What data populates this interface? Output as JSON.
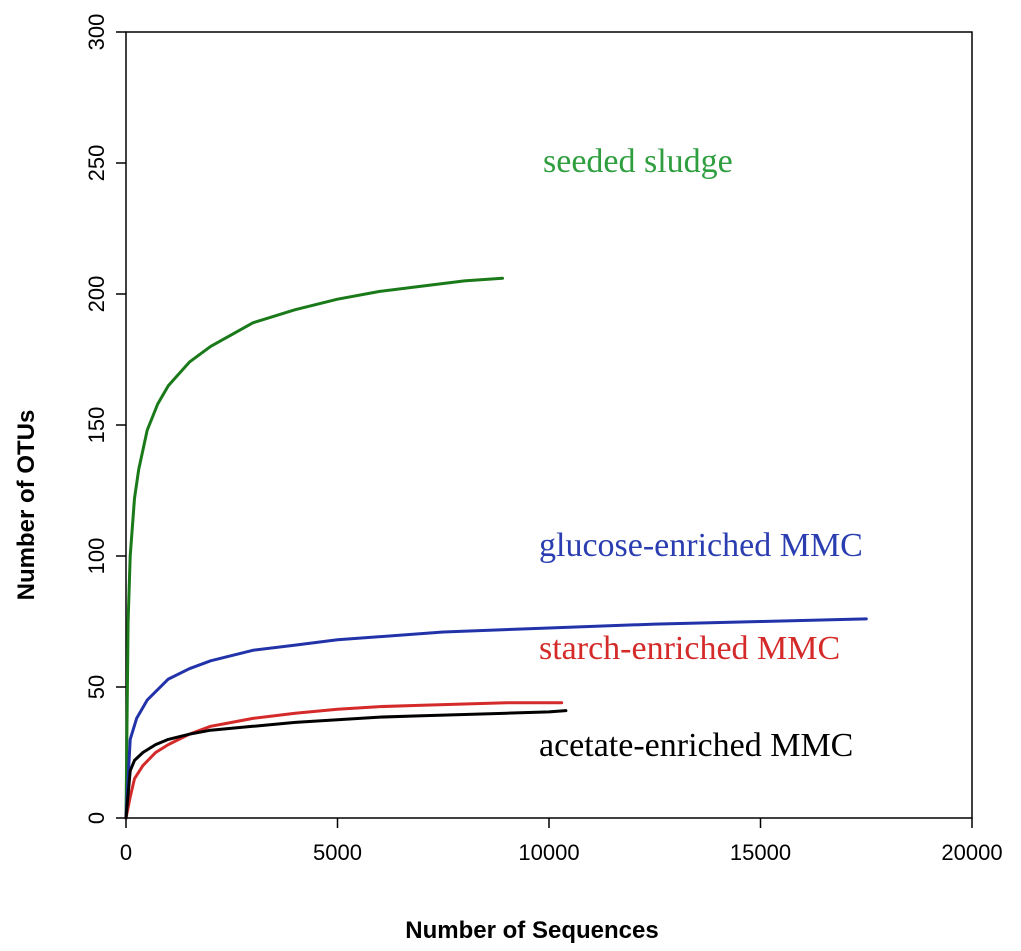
{
  "chart_data": {
    "type": "line",
    "title": "",
    "xlabel": "Number of Sequences",
    "ylabel": "Number of OTUs",
    "xlim": [
      0,
      20000
    ],
    "ylim": [
      0,
      300
    ],
    "x_ticks": [
      0,
      5000,
      10000,
      15000,
      20000
    ],
    "y_ticks": [
      0,
      50,
      100,
      150,
      200,
      250,
      300
    ],
    "grid": false,
    "legend": "none",
    "series": [
      {
        "name": "seeded sludge",
        "color": "#1a7a1a",
        "label_color": "#2f9e3f",
        "x": [
          0,
          50,
          100,
          200,
          300,
          500,
          750,
          1000,
          1500,
          2000,
          3000,
          4000,
          5000,
          6000,
          7000,
          8000,
          8900
        ],
        "y": [
          0,
          75,
          100,
          122,
          133,
          148,
          158,
          165,
          174,
          180,
          189,
          194,
          198,
          201,
          203,
          205,
          206
        ]
      },
      {
        "name": "glucose-enriched MMC",
        "color": "#2233aa",
        "label_color": "#2a3eb1",
        "x": [
          0,
          100,
          250,
          500,
          1000,
          1500,
          2000,
          3000,
          4000,
          5000,
          7500,
          10000,
          12500,
          15000,
          17500
        ],
        "y": [
          0,
          30,
          38,
          45,
          53,
          57,
          60,
          64,
          66,
          68,
          71,
          72.5,
          74,
          75,
          76
        ]
      },
      {
        "name": "starch-enriched MMC",
        "color": "#d42a2a",
        "label_color": "#d42a2a",
        "x": [
          0,
          100,
          200,
          400,
          700,
          1000,
          1500,
          2000,
          2500,
          3000,
          4000,
          5000,
          6000,
          7000,
          8000,
          9000,
          10000,
          10300
        ],
        "y": [
          0,
          8,
          15,
          20,
          25,
          28,
          32,
          35,
          36.5,
          38,
          40,
          41.5,
          42.5,
          43,
          43.5,
          44,
          44,
          44
        ]
      },
      {
        "name": "acetate-enriched MMC",
        "color": "#000000",
        "label_color": "#000000",
        "x": [
          0,
          100,
          200,
          400,
          700,
          1000,
          1500,
          2000,
          3000,
          4000,
          5000,
          6000,
          7000,
          8000,
          9000,
          10000,
          10400
        ],
        "y": [
          0,
          18,
          22,
          25,
          28,
          30,
          32,
          33.5,
          35,
          36.5,
          37.5,
          38.5,
          39,
          39.5,
          40,
          40.5,
          41
        ]
      }
    ]
  }
}
